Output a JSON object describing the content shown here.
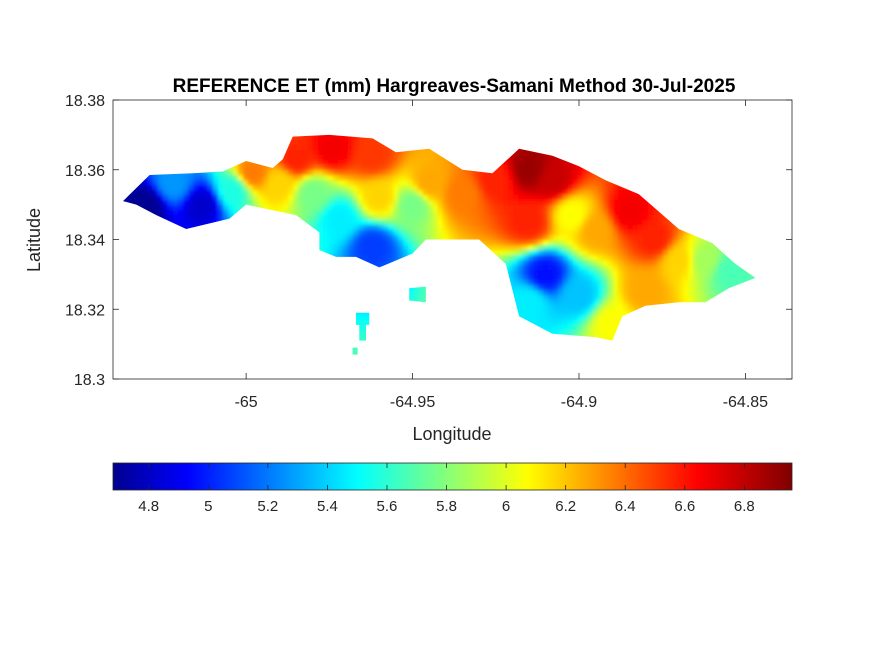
{
  "chart_data": {
    "type": "heatmap",
    "title": "REFERENCE ET (mm) Hargreaves-Samani Method  30-Jul-2025",
    "xlabel": "Longitude",
    "ylabel": "Latitude",
    "xlim": [
      -65.04,
      -64.836
    ],
    "ylim": [
      18.3,
      18.38
    ],
    "x_ticks": [
      -65,
      -64.95,
      -64.9,
      -64.85
    ],
    "x_tick_labels": [
      "-65",
      "-64.95",
      "-64.9",
      "-64.85"
    ],
    "y_ticks": [
      18.3,
      18.32,
      18.34,
      18.36,
      18.38
    ],
    "y_tick_labels": [
      "18.3",
      "18.32",
      "18.34",
      "18.36",
      "18.38"
    ],
    "colorbar": {
      "orientation": "horizontal",
      "placement": "below",
      "colormap": "jet",
      "range": [
        4.68,
        6.96
      ],
      "ticks": [
        4.8,
        5,
        5.2,
        5.4,
        5.6,
        5.8,
        6,
        6.2,
        6.4,
        6.6,
        6.8
      ],
      "tick_labels": [
        "4.8",
        "5",
        "5.2",
        "5.4",
        "5.6",
        "5.8",
        "6",
        "6.2",
        "6.4",
        "6.6",
        "6.8"
      ]
    },
    "region_outline": [
      [
        -65.037,
        18.351
      ],
      [
        -65.029,
        18.3585
      ],
      [
        -65.016,
        18.359
      ],
      [
        -65.007,
        18.3595
      ],
      [
        -65.0,
        18.3625
      ],
      [
        -64.992,
        18.3605
      ],
      [
        -64.989,
        18.363
      ],
      [
        -64.986,
        18.3695
      ],
      [
        -64.975,
        18.37
      ],
      [
        -64.962,
        18.369
      ],
      [
        -64.955,
        18.365
      ],
      [
        -64.945,
        18.366
      ],
      [
        -64.935,
        18.36
      ],
      [
        -64.926,
        18.359
      ],
      [
        -64.918,
        18.366
      ],
      [
        -64.908,
        18.364
      ],
      [
        -64.9,
        18.361
      ],
      [
        -64.892,
        18.357
      ],
      [
        -64.882,
        18.353
      ],
      [
        -64.87,
        18.343
      ],
      [
        -64.86,
        18.339
      ],
      [
        -64.853,
        18.333
      ],
      [
        -64.847,
        18.329
      ],
      [
        -64.855,
        18.326
      ],
      [
        -64.862,
        18.322
      ],
      [
        -64.87,
        18.322
      ],
      [
        -64.88,
        18.321
      ],
      [
        -64.887,
        18.318
      ],
      [
        -64.89,
        18.311
      ],
      [
        -64.895,
        18.312
      ],
      [
        -64.908,
        18.313
      ],
      [
        -64.918,
        18.318
      ],
      [
        -64.922,
        18.333
      ],
      [
        -64.93,
        18.34
      ],
      [
        -64.946,
        18.34
      ],
      [
        -64.95,
        18.336
      ],
      [
        -64.96,
        18.332
      ],
      [
        -64.967,
        18.335
      ],
      [
        -64.973,
        18.335
      ],
      [
        -64.978,
        18.337
      ],
      [
        -64.978,
        18.342
      ],
      [
        -64.985,
        18.347
      ],
      [
        -64.995,
        18.349
      ],
      [
        -65.0,
        18.35
      ],
      [
        -65.005,
        18.346
      ],
      [
        -65.018,
        18.343
      ],
      [
        -65.027,
        18.347
      ],
      [
        -65.033,
        18.35
      ]
    ],
    "islets": [
      [
        [
          -64.951,
          18.326
        ],
        [
          -64.946,
          18.3265
        ],
        [
          -64.946,
          18.322
        ],
        [
          -64.951,
          18.3225
        ]
      ],
      [
        [
          -64.967,
          18.319
        ],
        [
          -64.963,
          18.319
        ],
        [
          -64.963,
          18.3155
        ],
        [
          -64.967,
          18.3155
        ]
      ],
      [
        [
          -64.966,
          18.3155
        ],
        [
          -64.964,
          18.3155
        ],
        [
          -64.964,
          18.311
        ],
        [
          -64.966,
          18.311
        ]
      ],
      [
        [
          -64.968,
          18.309
        ],
        [
          -64.9665,
          18.309
        ],
        [
          -64.9665,
          18.307
        ],
        [
          -64.968,
          18.307
        ]
      ]
    ],
    "field_points": [
      {
        "lon": -65.03,
        "lat": 18.35,
        "value": 4.72
      },
      {
        "lon": -65.013,
        "lat": 18.35,
        "value": 4.85
      },
      {
        "lon": -65.022,
        "lat": 18.356,
        "value": 5.3
      },
      {
        "lon": -65.004,
        "lat": 18.354,
        "value": 5.6
      },
      {
        "lon": -64.998,
        "lat": 18.359,
        "value": 6.4
      },
      {
        "lon": -64.99,
        "lat": 18.356,
        "value": 6.2
      },
      {
        "lon": -64.985,
        "lat": 18.363,
        "value": 6.6
      },
      {
        "lon": -64.974,
        "lat": 18.366,
        "value": 6.7
      },
      {
        "lon": -64.962,
        "lat": 18.364,
        "value": 6.55
      },
      {
        "lon": -64.98,
        "lat": 18.353,
        "value": 5.8
      },
      {
        "lon": -64.972,
        "lat": 18.346,
        "value": 5.5
      },
      {
        "lon": -64.96,
        "lat": 18.352,
        "value": 6.2
      },
      {
        "lon": -64.95,
        "lat": 18.35,
        "value": 5.8
      },
      {
        "lon": -64.962,
        "lat": 18.338,
        "value": 5.1
      },
      {
        "lon": -64.945,
        "lat": 18.356,
        "value": 6.3
      },
      {
        "lon": -64.935,
        "lat": 18.353,
        "value": 6.4
      },
      {
        "lon": -64.925,
        "lat": 18.357,
        "value": 6.6
      },
      {
        "lon": -64.915,
        "lat": 18.36,
        "value": 6.9
      },
      {
        "lon": -64.908,
        "lat": 18.357,
        "value": 6.8
      },
      {
        "lon": -64.915,
        "lat": 18.345,
        "value": 6.6
      },
      {
        "lon": -64.902,
        "lat": 18.347,
        "value": 6.1
      },
      {
        "lon": -64.895,
        "lat": 18.343,
        "value": 6.3
      },
      {
        "lon": -64.885,
        "lat": 18.348,
        "value": 6.7
      },
      {
        "lon": -64.877,
        "lat": 18.34,
        "value": 6.6
      },
      {
        "lon": -64.87,
        "lat": 18.334,
        "value": 6.2
      },
      {
        "lon": -64.862,
        "lat": 18.334,
        "value": 5.9
      },
      {
        "lon": -64.855,
        "lat": 18.331,
        "value": 5.7
      },
      {
        "lon": -64.91,
        "lat": 18.33,
        "value": 5.0
      },
      {
        "lon": -64.9,
        "lat": 18.324,
        "value": 5.4
      },
      {
        "lon": -64.915,
        "lat": 18.322,
        "value": 5.5
      },
      {
        "lon": -64.89,
        "lat": 18.316,
        "value": 6.1
      },
      {
        "lon": -64.88,
        "lat": 18.325,
        "value": 6.3
      }
    ]
  }
}
